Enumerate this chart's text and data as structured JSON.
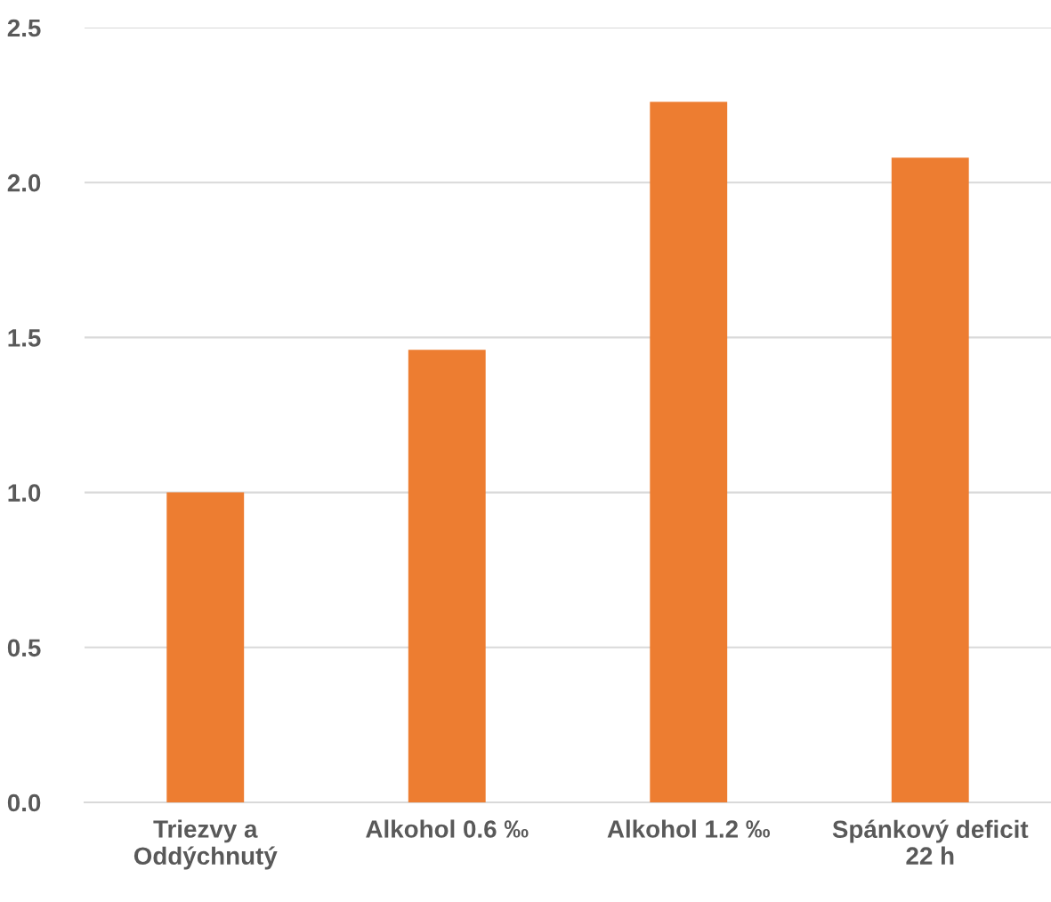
{
  "chart_data": {
    "type": "bar",
    "categories": [
      "Triezvy a\nOddýchnutý",
      "Alkohol 0.6 ‰",
      "Alkohol 1.2 ‰",
      "Spánkový deficit\n22 h"
    ],
    "values": [
      1.0,
      1.46,
      2.26,
      2.08
    ],
    "color": "#ed7d31",
    "ylim": [
      0,
      2.5
    ],
    "yticks": [
      {
        "value": 0,
        "label": "0.0"
      },
      {
        "value": 0.5,
        "label": "0.5"
      },
      {
        "value": 1,
        "label": "1.0"
      },
      {
        "value": 1.5,
        "label": "1.5"
      },
      {
        "value": 2,
        "label": "2.0"
      },
      {
        "value": 2.5,
        "label": "2.5"
      }
    ],
    "grid": "y"
  }
}
